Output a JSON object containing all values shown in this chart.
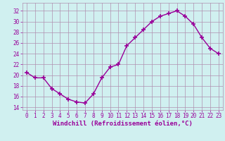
{
  "hours": [
    0,
    1,
    2,
    3,
    4,
    5,
    6,
    7,
    8,
    9,
    10,
    11,
    12,
    13,
    14,
    15,
    16,
    17,
    18,
    19,
    20,
    21,
    22,
    23
  ],
  "values": [
    20.5,
    19.5,
    19.5,
    17.5,
    16.5,
    15.5,
    15.0,
    14.8,
    16.5,
    19.5,
    21.5,
    22.0,
    25.5,
    27.0,
    28.5,
    30.0,
    31.0,
    31.5,
    32.0,
    31.0,
    29.5,
    27.0,
    25.0,
    24.0
  ],
  "line_color": "#990099",
  "marker": "+",
  "marker_size": 4,
  "line_width": 1.0,
  "bg_color": "#d0f0f0",
  "grid_color": "#b090b0",
  "xlabel": "Windchill (Refroidissement éolien,°C)",
  "xlabel_color": "#990099",
  "xlabel_fontsize": 6.5,
  "tick_color": "#990099",
  "tick_fontsize": 5.5,
  "ytick_labels": [
    "14",
    "16",
    "18",
    "20",
    "22",
    "24",
    "26",
    "28",
    "30",
    "32"
  ],
  "ytick_values": [
    14,
    16,
    18,
    20,
    22,
    24,
    26,
    28,
    30,
    32
  ],
  "ylim": [
    13.5,
    33.5
  ],
  "xlim": [
    -0.5,
    23.5
  ]
}
